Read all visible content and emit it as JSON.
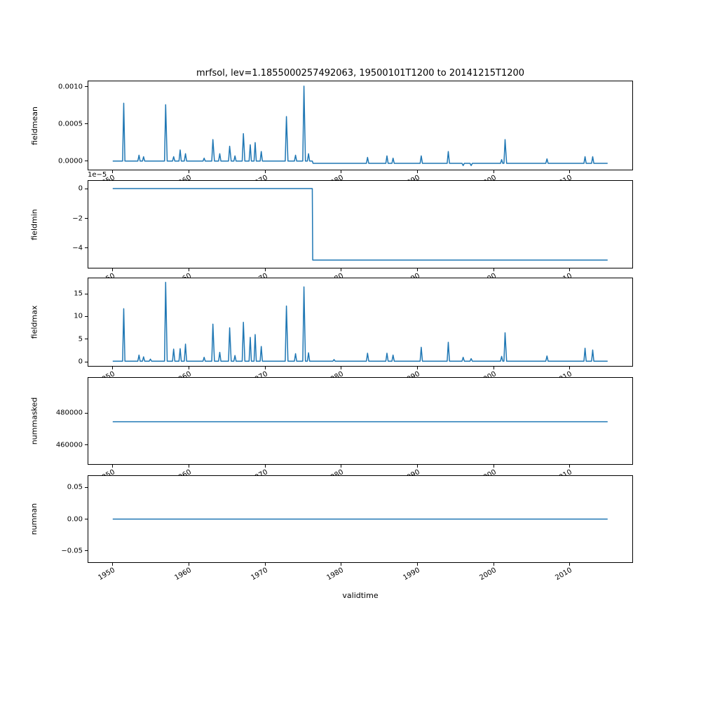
{
  "chart_data": {
    "type": "line",
    "title": "mrfsol, lev=1.1855000257492063, 19500101T1200 to 20141215T1200",
    "xlabel": "validtime",
    "line_color": "#1f77b4",
    "grid": false,
    "legend": "none",
    "xlim": [
      1946.8,
      2018.2
    ],
    "xticks": [
      {
        "v": 1950,
        "label": "1950"
      },
      {
        "v": 1960,
        "label": "1960"
      },
      {
        "v": 1970,
        "label": "1970"
      },
      {
        "v": 1980,
        "label": "1980"
      },
      {
        "v": 1990,
        "label": "1990"
      },
      {
        "v": 2000,
        "label": "2000"
      },
      {
        "v": 2010,
        "label": "2010"
      }
    ],
    "subplots": [
      {
        "name": "fieldmean",
        "ylabel": "fieldmean",
        "offset_text": "",
        "ylim": [
          -0.000115,
          0.001075
        ],
        "yticks": [
          {
            "v": 0.0,
            "label": "0.0000"
          },
          {
            "v": 0.0005,
            "label": "0.0005"
          },
          {
            "v": 0.001,
            "label": "0.0010"
          }
        ],
        "points": [
          [
            1950.0,
            0
          ],
          [
            1951.3,
            0
          ],
          [
            1951.45,
            0.00078
          ],
          [
            1951.6,
            0
          ],
          [
            1953.3,
            0
          ],
          [
            1953.45,
            8e-05
          ],
          [
            1953.6,
            0
          ],
          [
            1953.9,
            0
          ],
          [
            1954.05,
            6e-05
          ],
          [
            1954.2,
            0
          ],
          [
            1956.8,
            0
          ],
          [
            1956.95,
            0.00076
          ],
          [
            1957.15,
            0
          ],
          [
            1957.85,
            0
          ],
          [
            1958.0,
            6e-05
          ],
          [
            1958.15,
            0
          ],
          [
            1958.7,
            0
          ],
          [
            1958.85,
            0.00015
          ],
          [
            1959.0,
            0
          ],
          [
            1959.4,
            0
          ],
          [
            1959.55,
            0.0001
          ],
          [
            1959.7,
            0
          ],
          [
            1961.85,
            0
          ],
          [
            1962.0,
            4e-05
          ],
          [
            1962.15,
            0
          ],
          [
            1963.0,
            0
          ],
          [
            1963.15,
            0.00029
          ],
          [
            1963.35,
            0
          ],
          [
            1963.9,
            0
          ],
          [
            1964.05,
            0.0001
          ],
          [
            1964.2,
            0
          ],
          [
            1965.2,
            0
          ],
          [
            1965.35,
            0.0002
          ],
          [
            1965.55,
            0
          ],
          [
            1965.9,
            0
          ],
          [
            1966.05,
            7e-05
          ],
          [
            1966.2,
            0
          ],
          [
            1967.0,
            0
          ],
          [
            1967.15,
            0.00037
          ],
          [
            1967.35,
            0
          ],
          [
            1967.9,
            0
          ],
          [
            1968.05,
            0.00022
          ],
          [
            1968.2,
            0
          ],
          [
            1968.55,
            0
          ],
          [
            1968.7,
            0.00025
          ],
          [
            1968.85,
            0
          ],
          [
            1969.35,
            0
          ],
          [
            1969.5,
            0.00013
          ],
          [
            1969.65,
            0
          ],
          [
            1972.65,
            0
          ],
          [
            1972.8,
            0.0006
          ],
          [
            1973.0,
            0
          ],
          [
            1973.85,
            0
          ],
          [
            1974.0,
            8e-05
          ],
          [
            1974.15,
            0
          ],
          [
            1974.95,
            0
          ],
          [
            1975.1,
            0.00101
          ],
          [
            1975.3,
            0
          ],
          [
            1975.55,
            0
          ],
          [
            1975.7,
            0.0001
          ],
          [
            1975.85,
            0
          ],
          [
            1976.2,
            0
          ],
          [
            1976.3,
            -3e-05
          ],
          [
            1983.3,
            -3e-05
          ],
          [
            1983.45,
            5e-05
          ],
          [
            1983.6,
            -3e-05
          ],
          [
            1985.85,
            -3e-05
          ],
          [
            1986.0,
            7e-05
          ],
          [
            1986.15,
            -3e-05
          ],
          [
            1986.65,
            -3e-05
          ],
          [
            1986.8,
            4e-05
          ],
          [
            1986.95,
            -3e-05
          ],
          [
            1990.35,
            -3e-05
          ],
          [
            1990.5,
            7e-05
          ],
          [
            1990.65,
            -3e-05
          ],
          [
            1993.9,
            -3e-05
          ],
          [
            1994.05,
            0.00013
          ],
          [
            1994.2,
            -3e-05
          ],
          [
            1995.85,
            -3e-05
          ],
          [
            1996.0,
            -6e-05
          ],
          [
            1996.15,
            -3e-05
          ],
          [
            1996.9,
            -3e-05
          ],
          [
            1997.05,
            -6e-05
          ],
          [
            1997.2,
            -3e-05
          ],
          [
            2000.9,
            -3e-05
          ],
          [
            2001.05,
            2e-05
          ],
          [
            2001.2,
            -3e-05
          ],
          [
            2001.35,
            -3e-05
          ],
          [
            2001.5,
            0.00029
          ],
          [
            2001.7,
            -3e-05
          ],
          [
            2006.85,
            -3e-05
          ],
          [
            2007.0,
            3e-05
          ],
          [
            2007.15,
            -3e-05
          ],
          [
            2011.85,
            -3e-05
          ],
          [
            2012.0,
            6e-05
          ],
          [
            2012.15,
            -3e-05
          ],
          [
            2012.85,
            -3e-05
          ],
          [
            2013.0,
            6e-05
          ],
          [
            2013.15,
            -3e-05
          ],
          [
            2014.96,
            -3e-05
          ]
        ]
      },
      {
        "name": "fieldmin",
        "ylabel": "fieldmin",
        "offset_text": "1e−5",
        "ylim": [
          -5.32e-05,
          5.2e-06
        ],
        "yticks": [
          {
            "v": 0.0,
            "label": "0"
          },
          {
            "v": -2e-05,
            "label": "−2"
          },
          {
            "v": -4e-05,
            "label": "−4"
          }
        ],
        "points": [
          [
            1950.0,
            0
          ],
          [
            1976.2,
            0
          ],
          [
            1976.25,
            -4.8e-05
          ],
          [
            2014.96,
            -4.8e-05
          ]
        ]
      },
      {
        "name": "fieldmax",
        "ylabel": "fieldmax",
        "offset_text": "",
        "ylim": [
          -0.9,
          18.4
        ],
        "yticks": [
          {
            "v": 0,
            "label": "0"
          },
          {
            "v": 5,
            "label": "5"
          },
          {
            "v": 10,
            "label": "10"
          },
          {
            "v": 15,
            "label": "15"
          }
        ],
        "points": [
          [
            1950.0,
            0.15
          ],
          [
            1951.3,
            0.15
          ],
          [
            1951.45,
            11.7
          ],
          [
            1951.6,
            0.15
          ],
          [
            1953.3,
            0.15
          ],
          [
            1953.45,
            1.5
          ],
          [
            1953.6,
            0.15
          ],
          [
            1953.9,
            0.15
          ],
          [
            1954.05,
            1.1
          ],
          [
            1954.2,
            0.15
          ],
          [
            1954.8,
            0.15
          ],
          [
            1954.95,
            0.6
          ],
          [
            1955.1,
            0.15
          ],
          [
            1956.8,
            0.15
          ],
          [
            1956.95,
            17.5
          ],
          [
            1957.15,
            0.15
          ],
          [
            1957.85,
            0.15
          ],
          [
            1958.0,
            2.8
          ],
          [
            1958.15,
            0.15
          ],
          [
            1958.7,
            0.15
          ],
          [
            1958.85,
            2.9
          ],
          [
            1959.0,
            0.15
          ],
          [
            1959.4,
            0.15
          ],
          [
            1959.55,
            3.9
          ],
          [
            1959.7,
            0.15
          ],
          [
            1961.85,
            0.15
          ],
          [
            1962.0,
            1.0
          ],
          [
            1962.15,
            0.15
          ],
          [
            1963.0,
            0.15
          ],
          [
            1963.15,
            8.3
          ],
          [
            1963.35,
            0.15
          ],
          [
            1963.9,
            0.15
          ],
          [
            1964.05,
            2.1
          ],
          [
            1964.2,
            0.15
          ],
          [
            1965.2,
            0.15
          ],
          [
            1965.35,
            7.5
          ],
          [
            1965.55,
            0.15
          ],
          [
            1965.9,
            0.15
          ],
          [
            1966.05,
            1.4
          ],
          [
            1966.2,
            0.15
          ],
          [
            1967.0,
            0.15
          ],
          [
            1967.15,
            8.7
          ],
          [
            1967.35,
            0.15
          ],
          [
            1967.9,
            0.15
          ],
          [
            1968.05,
            5.4
          ],
          [
            1968.2,
            0.15
          ],
          [
            1968.55,
            0.15
          ],
          [
            1968.7,
            6.0
          ],
          [
            1968.85,
            0.15
          ],
          [
            1969.35,
            0.15
          ],
          [
            1969.5,
            3.4
          ],
          [
            1969.65,
            0.15
          ],
          [
            1972.65,
            0.15
          ],
          [
            1972.8,
            12.3
          ],
          [
            1973.0,
            0.15
          ],
          [
            1973.85,
            0.15
          ],
          [
            1974.0,
            1.8
          ],
          [
            1974.15,
            0.15
          ],
          [
            1974.95,
            0.15
          ],
          [
            1975.1,
            16.5
          ],
          [
            1975.3,
            0.15
          ],
          [
            1975.55,
            0.15
          ],
          [
            1975.7,
            2.0
          ],
          [
            1975.85,
            0.15
          ],
          [
            1978.9,
            0.15
          ],
          [
            1979.05,
            0.5
          ],
          [
            1979.2,
            0.15
          ],
          [
            1983.3,
            0.15
          ],
          [
            1983.45,
            1.9
          ],
          [
            1983.6,
            0.15
          ],
          [
            1985.85,
            0.15
          ],
          [
            1986.0,
            1.9
          ],
          [
            1986.15,
            0.15
          ],
          [
            1986.65,
            0.15
          ],
          [
            1986.8,
            1.5
          ],
          [
            1986.95,
            0.15
          ],
          [
            1990.35,
            0.15
          ],
          [
            1990.5,
            3.2
          ],
          [
            1990.65,
            0.15
          ],
          [
            1993.9,
            0.15
          ],
          [
            1994.05,
            4.3
          ],
          [
            1994.2,
            0.15
          ],
          [
            1995.85,
            0.15
          ],
          [
            1996.0,
            1.0
          ],
          [
            1996.15,
            0.15
          ],
          [
            1996.9,
            0.15
          ],
          [
            1997.05,
            0.7
          ],
          [
            1997.2,
            0.15
          ],
          [
            2000.9,
            0.15
          ],
          [
            2001.05,
            1.2
          ],
          [
            2001.2,
            0.15
          ],
          [
            2001.35,
            0.15
          ],
          [
            2001.5,
            6.4
          ],
          [
            2001.7,
            0.15
          ],
          [
            2006.85,
            0.15
          ],
          [
            2007.0,
            1.3
          ],
          [
            2007.15,
            0.15
          ],
          [
            2011.85,
            0.15
          ],
          [
            2012.0,
            3.0
          ],
          [
            2012.15,
            0.15
          ],
          [
            2012.85,
            0.15
          ],
          [
            2013.0,
            2.6
          ],
          [
            2013.15,
            0.15
          ],
          [
            2014.96,
            0.15
          ]
        ]
      },
      {
        "name": "nummasked",
        "ylabel": "nummasked",
        "offset_text": "",
        "ylim": [
          448000,
          502000
        ],
        "yticks": [
          {
            "v": 480000,
            "label": "480000"
          },
          {
            "v": 460000,
            "label": "460000"
          }
        ],
        "points": [
          [
            1950.0,
            474500
          ],
          [
            2014.96,
            474500
          ]
        ]
      },
      {
        "name": "numnan",
        "ylabel": "numnan",
        "offset_text": "",
        "ylim": [
          -0.0678,
          0.0678
        ],
        "yticks": [
          {
            "v": 0.05,
            "label": "0.05"
          },
          {
            "v": 0.0,
            "label": "0.00"
          },
          {
            "v": -0.05,
            "label": "−0.05"
          }
        ],
        "points": [
          [
            1950.0,
            0
          ],
          [
            2014.96,
            0
          ]
        ]
      }
    ]
  }
}
